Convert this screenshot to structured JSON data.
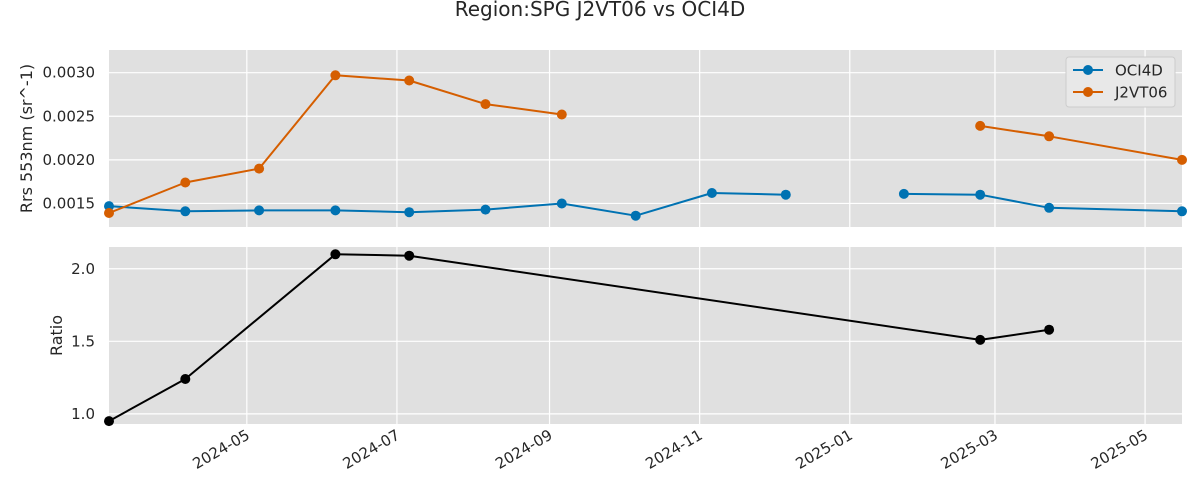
{
  "chart_data": {
    "title": "Region:SPG J2VT06 vs OCI4D",
    "x_range": [
      "2024-03-06",
      "2025-05-16"
    ],
    "x_ticks": [
      "2024-05",
      "2024-07",
      "2024-09",
      "2024-11",
      "2025-01",
      "2025-03",
      "2025-05"
    ],
    "grid": true,
    "panels": [
      {
        "type": "line",
        "ylabel": "Rrs 553nm (sr^-1)",
        "ylim": [
          0.00123,
          0.00326
        ],
        "y_ticks": [
          "0.0015",
          "0.0020",
          "0.0025",
          "0.0030"
        ],
        "legend": {
          "placement": "top-right",
          "entries": [
            "OCI4D",
            "J2VT06"
          ]
        },
        "series": [
          {
            "name": "OCI4D",
            "color": "#0072b2",
            "x": [
              "2024-03-06",
              "2024-04-06",
              "2024-05-06",
              "2024-06-06",
              "2024-07-06",
              "2024-08-06",
              "2024-09-06",
              "2024-10-06",
              "2024-11-06",
              "2024-12-06",
              "2025-01-23",
              "2025-02-23",
              "2025-03-23",
              "2025-05-16"
            ],
            "y": [
              0.00147,
              0.00141,
              0.00142,
              0.00142,
              0.0014,
              0.00143,
              0.0015,
              0.00136,
              0.00162,
              0.0016,
              0.00161,
              0.0016,
              0.00145,
              0.00141
            ],
            "segments": [
              [
                0,
                9
              ],
              [
                10,
                13
              ]
            ]
          },
          {
            "name": "J2VT06",
            "color": "#d55e00",
            "x": [
              "2024-03-06",
              "2024-04-06",
              "2024-05-06",
              "2024-06-06",
              "2024-07-06",
              "2024-08-06",
              "2024-09-06",
              "2025-02-23",
              "2025-03-23",
              "2025-05-16"
            ],
            "y": [
              0.00139,
              0.00174,
              0.0019,
              0.00297,
              0.00291,
              0.00264,
              0.00252,
              0.00239,
              0.00227,
              0.002
            ],
            "segments": [
              [
                0,
                6
              ],
              [
                7,
                9
              ]
            ]
          }
        ]
      },
      {
        "type": "line",
        "ylabel": "Ratio",
        "ylim": [
          0.93,
          2.15
        ],
        "y_ticks": [
          "1.0",
          "1.5",
          "2.0"
        ],
        "series": [
          {
            "color": "#000000",
            "x": [
              "2024-03-06",
              "2024-04-06",
              "2024-06-06",
              "2024-07-06",
              "2025-02-23",
              "2025-03-23"
            ],
            "y": [
              0.95,
              1.24,
              2.1,
              2.09,
              1.51,
              1.58
            ],
            "segments": [
              [
                0,
                5
              ]
            ]
          }
        ]
      }
    ]
  }
}
